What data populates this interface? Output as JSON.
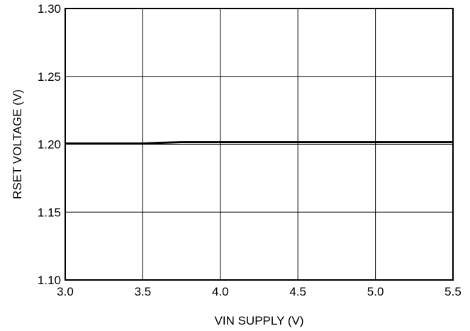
{
  "chart_data": {
    "type": "line",
    "title": "",
    "xlabel": "VIN SUPPLY (V)",
    "ylabel": "RSET VOLTAGE (V)",
    "xlim": [
      3.0,
      5.5
    ],
    "ylim": [
      1.1,
      1.3
    ],
    "x_ticks": [
      "3.0",
      "3.5",
      "4.0",
      "4.5",
      "5.0",
      "5.5"
    ],
    "y_ticks": [
      "1.30",
      "1.25",
      "1.20",
      "1.15",
      "1.10"
    ],
    "grid": true,
    "series": [
      {
        "x": [
          3.0,
          3.25,
          3.5,
          3.6,
          3.75,
          4.0,
          4.5,
          5.0,
          5.5
        ],
        "y": [
          1.2005,
          1.2005,
          1.2005,
          1.201,
          1.2015,
          1.2015,
          1.2015,
          1.2015,
          1.2015
        ],
        "color": "#000000"
      }
    ]
  }
}
